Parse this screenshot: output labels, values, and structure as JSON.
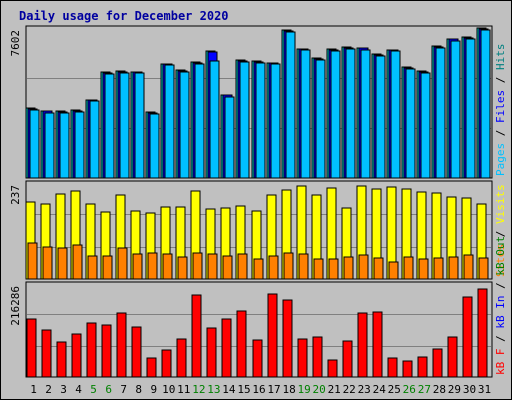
{
  "chart_data": {
    "type": "bar",
    "title": "Daily usage for December 2020",
    "categories": [
      "1",
      "2",
      "3",
      "4",
      "5",
      "6",
      "7",
      "8",
      "9",
      "10",
      "11",
      "12",
      "13",
      "14",
      "15",
      "16",
      "17",
      "18",
      "19",
      "20",
      "21",
      "22",
      "23",
      "24",
      "25",
      "26",
      "27",
      "28",
      "29",
      "30",
      "31"
    ],
    "weekend_days": [
      "5",
      "6",
      "12",
      "13",
      "19",
      "20",
      "26",
      "27"
    ],
    "panels": [
      {
        "name": "hits-files-pages",
        "max_label": "7602",
        "ymax": 7602,
        "legend": [
          {
            "text": "Pages",
            "color": "#00c0ff"
          },
          {
            "text": " / ",
            "color": "#000000"
          },
          {
            "text": "Files",
            "color": "#0000ff"
          },
          {
            "text": " / ",
            "color": "#000000"
          },
          {
            "text": "Hits",
            "color": "#008080"
          }
        ],
        "series": [
          {
            "name": "Hits",
            "color": "#00c6c6",
            "values": [
              3580,
              3460,
              3420,
              3470,
              4030,
              5420,
              5500,
              5470,
              3400,
              5880,
              5530,
              5970,
              6520,
              4280,
              6040,
              5990,
              5930,
              7580,
              6650,
              6150,
              6610,
              6730,
              6700,
              6350,
              6600,
              5710,
              5510,
              6770,
              7160,
              7250,
              7680
            ]
          },
          {
            "name": "Files",
            "color": "#0000ff",
            "values": [
              3540,
              3420,
              3390,
              3430,
              3990,
              5380,
              5460,
              5430,
              3360,
              5840,
              5490,
              5930,
              6480,
              4240,
              6000,
              5950,
              5890,
              7540,
              6610,
              6110,
              6570,
              6690,
              6660,
              6310,
              6560,
              5670,
              5470,
              6730,
              7120,
              7210,
              7640
            ]
          },
          {
            "name": "Pages",
            "color": "#00c0ff",
            "values": [
              3480,
              3360,
              3330,
              3370,
              3930,
              5320,
              5400,
              5370,
              3300,
              5780,
              5430,
              5870,
              6000,
              4180,
              5940,
              5890,
              5830,
              7480,
              6550,
              6050,
              6510,
              6630,
              6600,
              6250,
              6500,
              5610,
              5410,
              6670,
              7060,
              7150,
              7580
            ]
          }
        ]
      },
      {
        "name": "sites-visits",
        "max_label": "237",
        "ymax": 237,
        "legend": [
          {
            "text": "Sites",
            "color": "#ff8000"
          },
          {
            "text": " / ",
            "color": "#000000"
          },
          {
            "text": "Visits",
            "color": "#ffff00"
          }
        ],
        "series": [
          {
            "name": "Visits",
            "color": "#ffff00",
            "values": [
              195,
              190,
              215,
              222,
              190,
              170,
              212,
              171,
              167,
              182,
              182,
              222,
              177,
              179,
              185,
              171,
              212,
              225,
              235,
              213,
              230,
              180,
              235,
              226,
              232,
              226,
              219,
              216,
              206,
              203,
              188
            ]
          },
          {
            "name": "Sites",
            "color": "#ff8000",
            "values": [
              90,
              81,
              78,
              85,
              58,
              57,
              77,
              62,
              65,
              64,
              55,
              65,
              63,
              58,
              63,
              50,
              58,
              66,
              64,
              50,
              51,
              55,
              60,
              53,
              43,
              56,
              51,
              53,
              56,
              60,
              52
            ]
          }
        ]
      },
      {
        "name": "kbytes",
        "max_label": "216286",
        "ymax": 216286,
        "legend": [
          {
            "text": "kB F",
            "color": "#ff0000"
          },
          {
            "text": " / ",
            "color": "#000000"
          },
          {
            "text": "kB In",
            "color": "#0000ff"
          },
          {
            "text": " / ",
            "color": "#000000"
          },
          {
            "text": "kB Out",
            "color": "#008000"
          }
        ],
        "series": [
          {
            "name": "kB F",
            "color": "#ff0000",
            "values": [
              139000,
              112000,
              84000,
              103000,
              128000,
              124000,
              153000,
              118000,
              46000,
              65000,
              91000,
              194000,
              117000,
              139000,
              157000,
              89000,
              198000,
              183000,
              91000,
              94000,
              41000,
              85000,
              151000,
              155000,
              44000,
              37000,
              48000,
              67000,
              94000,
              190000,
              210000
            ]
          }
        ]
      }
    ]
  }
}
